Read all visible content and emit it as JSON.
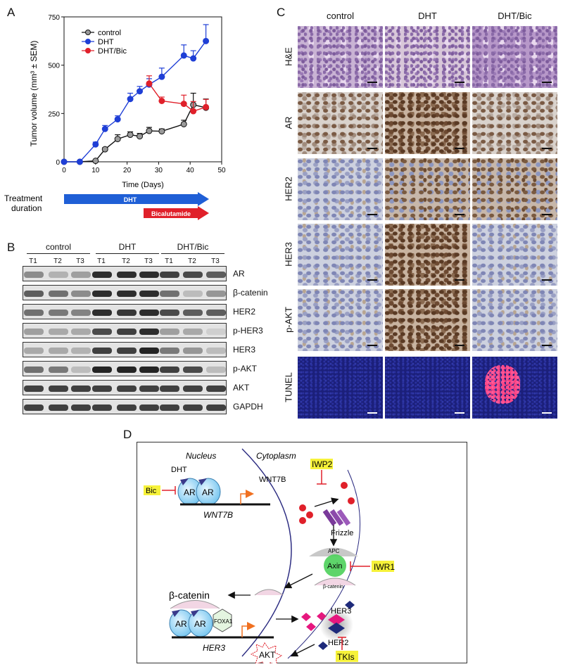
{
  "panels": {
    "a": "A",
    "b": "B",
    "c": "C",
    "d": "D"
  },
  "panel_a": {
    "legend": [
      "control",
      "DHT",
      "DHT/Bic"
    ],
    "treatment_label_line1": "Treatment",
    "treatment_label_line2": "duration",
    "dht_arrow_label": "DHT",
    "bic_arrow_label": "Bicalutamide",
    "colors": {
      "control": "#888888",
      "dht": "#1f3fd6",
      "bic": "#e0202a"
    }
  },
  "chart_data": {
    "type": "line",
    "xlabel": "Time (Days)",
    "ylabel": "Tumor volume (mm³ ± SEM)",
    "xlim": [
      0,
      50
    ],
    "ylim": [
      0,
      750
    ],
    "xticks": [
      0,
      10,
      20,
      30,
      40,
      50
    ],
    "yticks": [
      0,
      250,
      500,
      750
    ],
    "series": [
      {
        "name": "control",
        "x": [
          0,
          5,
          10,
          13,
          17,
          21,
          24,
          27,
          31,
          38,
          41,
          45
        ],
        "y": [
          0,
          0,
          5,
          65,
          118,
          140,
          132,
          160,
          158,
          195,
          295,
          280
        ],
        "err": [
          0,
          0,
          0,
          8,
          22,
          15,
          15,
          18,
          12,
          20,
          60,
          45
        ]
      },
      {
        "name": "DHT",
        "x": [
          0,
          5,
          10,
          13,
          17,
          21,
          24,
          27,
          31,
          38,
          41,
          45
        ],
        "y": [
          0,
          0,
          90,
          170,
          220,
          325,
          365,
          400,
          440,
          550,
          535,
          625
        ],
        "err": [
          0,
          0,
          12,
          18,
          18,
          30,
          25,
          30,
          45,
          55,
          40,
          85
        ]
      },
      {
        "name": "DHT/Bic",
        "x": [
          27,
          31,
          38,
          41,
          45
        ],
        "y": [
          405,
          315,
          300,
          262,
          283
        ],
        "err": [
          40,
          20,
          45,
          50,
          40
        ]
      }
    ]
  },
  "panel_b": {
    "groups": [
      "control",
      "DHT",
      "DHT/Bic"
    ],
    "lanes": [
      "T1",
      "T2",
      "T3",
      "T1",
      "T2",
      "T3",
      "T1",
      "T2",
      "T3"
    ],
    "rows": [
      {
        "label": "AR",
        "intensity": [
          0.45,
          0.25,
          0.35,
          0.95,
          0.95,
          0.95,
          0.85,
          0.8,
          0.7
        ]
      },
      {
        "label": "β-catenin",
        "intensity": [
          0.7,
          0.6,
          0.45,
          0.95,
          0.95,
          0.95,
          0.6,
          0.2,
          0.4
        ]
      },
      {
        "label": "HER2",
        "intensity": [
          0.6,
          0.55,
          0.5,
          0.95,
          0.9,
          0.95,
          0.8,
          0.7,
          0.7
        ]
      },
      {
        "label": "p-HER3",
        "intensity": [
          0.35,
          0.3,
          0.3,
          0.8,
          0.85,
          0.95,
          0.35,
          0.3,
          0.1
        ]
      },
      {
        "label": "HER3",
        "intensity": [
          0.3,
          0.3,
          0.25,
          0.85,
          0.85,
          1.0,
          0.55,
          0.4,
          0.2
        ]
      },
      {
        "label": "p-AKT",
        "intensity": [
          0.6,
          0.55,
          0.2,
          1.0,
          1.0,
          1.0,
          0.85,
          0.8,
          0.2
        ]
      },
      {
        "label": "AKT",
        "intensity": [
          0.85,
          0.85,
          0.85,
          0.85,
          0.85,
          0.85,
          0.85,
          0.85,
          0.85
        ]
      },
      {
        "label": "GAPDH",
        "intensity": [
          0.85,
          0.85,
          0.85,
          0.85,
          0.85,
          0.85,
          0.85,
          0.85,
          0.85
        ]
      }
    ]
  },
  "panel_c": {
    "columns": [
      "control",
      "DHT",
      "DHT/Bic"
    ],
    "rows": [
      "H&E",
      "AR",
      "HER2",
      "HER3",
      "p-AKT",
      "TUNEL"
    ]
  },
  "panel_d": {
    "nucleus": "Nucleus",
    "cytoplasm": "Cytoplasm",
    "dht": "DHT",
    "ar": "AR",
    "bic": "Bic",
    "wnt7b_gene": "WNT7B",
    "wnt7b_protein": "WNT7B",
    "iwp2": "IWP2",
    "frizzle": "Frizzle",
    "apc": "APC",
    "axin": "Axin",
    "iwr1": "IWR1",
    "beta_catenin_small": "β-catenin",
    "beta_catenin": "β-catenin",
    "foxa1": "FOXA1",
    "her3_gene": "HER3",
    "her3_protein": "HER3",
    "her2": "HER2",
    "akt": "AKT",
    "tkis": "TKIs"
  }
}
